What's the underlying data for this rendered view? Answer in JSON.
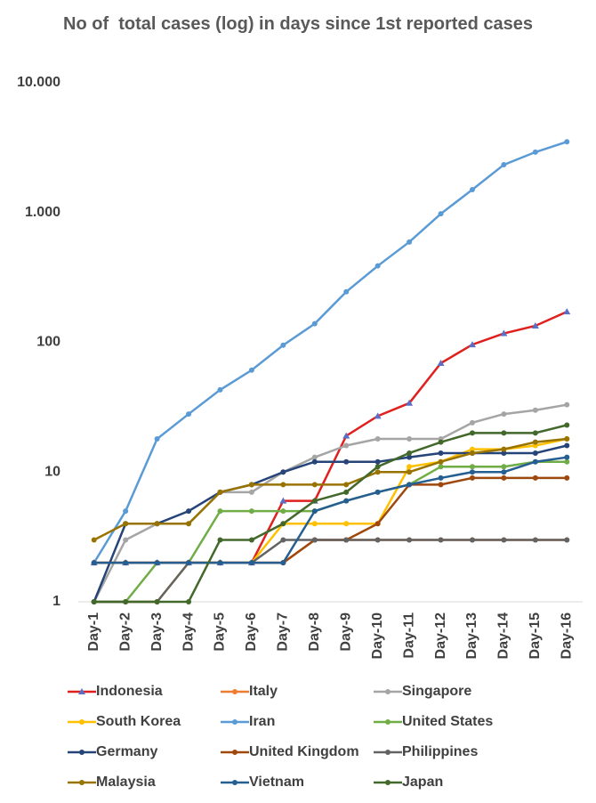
{
  "chart_data": {
    "type": "line",
    "title": "No of  total cases (log) in days since 1st reported cases",
    "categories": [
      "Day-1",
      "Day-2",
      "Day-3",
      "Day-4",
      "Day-5",
      "Day-6",
      "Day-7",
      "Day-8",
      "Day-9",
      "Day-10",
      "Day-11",
      "Day-12",
      "Day-13",
      "Day-14",
      "Day-15",
      "Day-16"
    ],
    "log_scale": true,
    "grid": false,
    "ylim": [
      1,
      10000
    ],
    "yticks": [
      1,
      10,
      100,
      {
        "value": 1000,
        "label": "1.000"
      },
      {
        "value": 10000,
        "label": "10.000"
      }
    ],
    "legend": "bottom",
    "series": [
      {
        "name": "Indonesia",
        "color": "#e0201f",
        "marker": "triangle",
        "marker_color": "#5b6fc4",
        "values": [
          2,
          2,
          2,
          2,
          2,
          2,
          6,
          6,
          19,
          27,
          34,
          69,
          96,
          117,
          134,
          172
        ]
      },
      {
        "name": "Italy",
        "color": "#ed7d31",
        "values": [
          2,
          2,
          2,
          2,
          2,
          2,
          2,
          3,
          3,
          3,
          3,
          3,
          3,
          3,
          3,
          3
        ]
      },
      {
        "name": "Singapore",
        "color": "#a5a5a5",
        "values": [
          1,
          3,
          4,
          4,
          7,
          7,
          10,
          13,
          16,
          18,
          18,
          18,
          24,
          28,
          30,
          33
        ]
      },
      {
        "name": "South Korea",
        "color": "#ffc000",
        "values": [
          1,
          1,
          1,
          2,
          2,
          2,
          4,
          4,
          4,
          4,
          11,
          12,
          15,
          15,
          16,
          18
        ]
      },
      {
        "name": "Iran",
        "color": "#5b9bd5",
        "values": [
          2,
          5,
          18,
          28,
          43,
          61,
          95,
          139,
          245,
          388,
          593,
          978,
          1501,
          2336,
          2922,
          3513
        ]
      },
      {
        "name": "United States",
        "color": "#70ad47",
        "values": [
          1,
          1,
          2,
          2,
          5,
          5,
          5,
          5,
          6,
          7,
          8,
          11,
          11,
          11,
          12,
          12
        ]
      },
      {
        "name": "Germany",
        "color": "#264478",
        "values": [
          1,
          4,
          4,
          5,
          7,
          8,
          10,
          12,
          12,
          12,
          13,
          14,
          14,
          14,
          14,
          16
        ]
      },
      {
        "name": "United Kingdom",
        "color": "#9e480e",
        "values": [
          2,
          2,
          2,
          2,
          2,
          2,
          2,
          3,
          3,
          4,
          8,
          8,
          9,
          9,
          9,
          9
        ]
      },
      {
        "name": "Philippines",
        "color": "#636363",
        "values": [
          1,
          1,
          1,
          2,
          2,
          2,
          3,
          3,
          3,
          3,
          3,
          3,
          3,
          3,
          3,
          3
        ]
      },
      {
        "name": "Malaysia",
        "color": "#997300",
        "values": [
          3,
          4,
          4,
          4,
          7,
          8,
          8,
          8,
          8,
          10,
          10,
          12,
          14,
          15,
          17,
          18
        ]
      },
      {
        "name": "Vietnam",
        "color": "#255e91",
        "values": [
          2,
          2,
          2,
          2,
          2,
          2,
          2,
          5,
          6,
          7,
          8,
          9,
          10,
          10,
          12,
          13
        ]
      },
      {
        "name": "Japan",
        "color": "#43682b",
        "values": [
          1,
          1,
          1,
          1,
          3,
          3,
          4,
          6,
          7,
          11,
          14,
          17,
          20,
          20,
          20,
          23
        ]
      }
    ]
  }
}
